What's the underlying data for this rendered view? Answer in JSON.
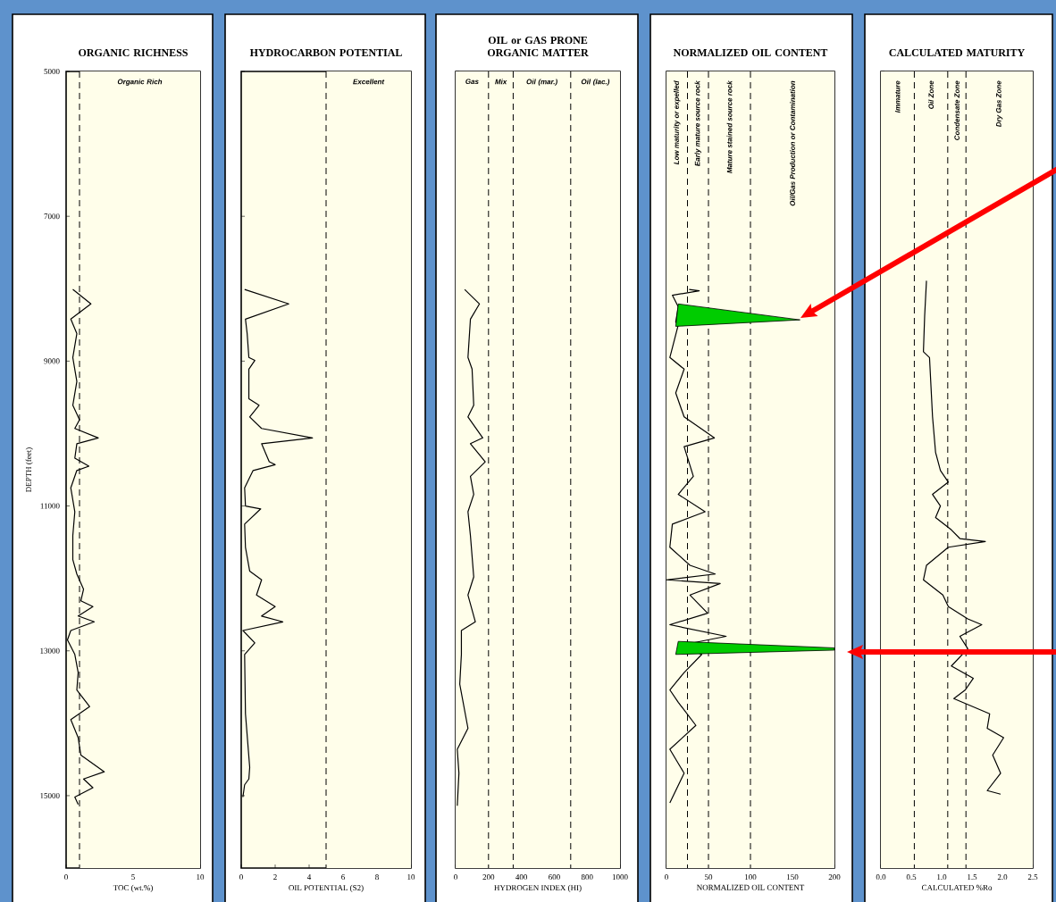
{
  "chart_data": [
    {
      "type": "line",
      "title": "ORGANIC RICHNESS",
      "xlabel": "TOC (wt.%)",
      "ylabel": "DEPTH (feet)",
      "xlim": [
        0,
        10
      ],
      "ylim": [
        16000,
        5000
      ],
      "xticks": [
        0,
        5,
        10
      ],
      "yticks": [
        5000,
        7000,
        9000,
        11000,
        13000,
        15000
      ],
      "ref_lines": [
        {
          "axis": "x",
          "value": 1,
          "line_style": "dashed"
        }
      ],
      "bands": [
        {
          "axis": "x",
          "from": 1,
          "to": 10,
          "label": "Organic Rich",
          "color": "#fffeea"
        }
      ],
      "series": [
        {
          "color": "#000000",
          "x": [
            0.5,
            1.85,
            0.35,
            0.8,
            0.5,
            0.8,
            0.5,
            1.0,
            0.65,
            2.4,
            0.8,
            0.65,
            1.7,
            0.8,
            0.35,
            0.65,
            0.5,
            0.5,
            0.8,
            1.3,
            1.1,
            2.0,
            0.9,
            2.1,
            0.35,
            0.1,
            0.65,
            0.9,
            0.8,
            1.75,
            0.35,
            0.9,
            1.1,
            2.85,
            1.3,
            2.0,
            0.65,
            0.9
          ],
          "values": [
            8010,
            8210,
            8420,
            8620,
            8950,
            9280,
            9610,
            9810,
            9930,
            10060,
            10140,
            10340,
            10450,
            10510,
            10750,
            11080,
            11410,
            11740,
            11940,
            12150,
            12310,
            12390,
            12520,
            12600,
            12720,
            12850,
            13050,
            13300,
            13540,
            13770,
            13950,
            14200,
            14440,
            14670,
            14770,
            14890,
            15020,
            15120
          ]
        }
      ]
    },
    {
      "type": "line",
      "title": "HYDROCARBON POTENTIAL",
      "xlabel": "OIL POTENTIAL (S2)",
      "xlim": [
        0,
        10
      ],
      "ylim": [
        16000,
        5000
      ],
      "xticks": [
        0,
        2,
        4,
        6,
        8,
        10
      ],
      "yticks": [
        5000,
        7000,
        9000,
        11000,
        13000,
        15000
      ],
      "tick_labels": "x",
      "ref_lines": [
        {
          "axis": "x",
          "value": 5,
          "line_style": "dashed"
        }
      ],
      "bands": [
        {
          "axis": "x",
          "from": 5,
          "to": 10,
          "label": "Excellent",
          "color": "#fffeea"
        }
      ],
      "series": [
        {
          "color": "#000000",
          "x": [
            0.2,
            2.8,
            0.25,
            0.35,
            0.45,
            0.8,
            0.45,
            0.45,
            1.05,
            0.5,
            1.2,
            4.2,
            1.2,
            1.65,
            2.0,
            0.7,
            0.2,
            0.25,
            1.15,
            0.2,
            0.25,
            0.5,
            1.2,
            0.9,
            2.0,
            1.2,
            2.45,
            0.1,
            0.8,
            0.2,
            0.25,
            0.5,
            0.45,
            0.2,
            0.1
          ],
          "values": [
            8010,
            8210,
            8420,
            8620,
            8950,
            8990,
            9110,
            9520,
            9610,
            9770,
            9930,
            10060,
            10140,
            10390,
            10430,
            10510,
            10750,
            11000,
            11040,
            11250,
            11570,
            11900,
            12020,
            12230,
            12390,
            12520,
            12600,
            12720,
            12890,
            13050,
            13870,
            14610,
            14770,
            14850,
            15020
          ]
        }
      ]
    },
    {
      "type": "line",
      "title": "OIL or GAS PRONE ORGANIC MATTER",
      "xlabel": "HYDROGEN INDEX (HI)",
      "xlim": [
        0,
        1000
      ],
      "ylim": [
        16000,
        5000
      ],
      "xticks": [
        0,
        200,
        400,
        600,
        800,
        1000
      ],
      "yticks": [
        5000,
        7000,
        9000,
        11000,
        13000,
        15000
      ],
      "tick_labels": "x",
      "ref_lines": [
        {
          "axis": "x",
          "value": 200,
          "line_style": "dashed"
        },
        {
          "axis": "x",
          "value": 350,
          "line_style": "dashed"
        },
        {
          "axis": "x",
          "value": 700,
          "line_style": "dashed"
        }
      ],
      "bands": [
        {
          "axis": "x",
          "from": 0,
          "to": 200,
          "label": "Gas",
          "color": "#fffeea"
        },
        {
          "axis": "x",
          "from": 200,
          "to": 350,
          "label": "Mix",
          "color": "#fffeea"
        },
        {
          "axis": "x",
          "from": 350,
          "to": 700,
          "label": "Oil (mar.)",
          "color": "#fffeea"
        },
        {
          "axis": "x",
          "from": 700,
          "to": 1000,
          "label": "Oil (lac.)",
          "color": "#fffeea"
        }
      ],
      "series": [
        {
          "color": "#000000",
          "x": [
            55,
            145,
            90,
            75,
            100,
            110,
            75,
            165,
            90,
            180,
            90,
            110,
            75,
            90,
            110,
            75,
            120,
            35,
            35,
            25,
            75,
            10,
            20,
            10
          ],
          "values": [
            8010,
            8210,
            8420,
            8950,
            9110,
            9610,
            9770,
            10060,
            10140,
            10390,
            10590,
            10840,
            11080,
            11410,
            11980,
            12230,
            12600,
            12720,
            13050,
            13460,
            14070,
            14360,
            14690,
            15140
          ]
        }
      ]
    },
    {
      "type": "line",
      "title": "NORMALIZED OIL CONTENT",
      "xlabel": "NORMALIZED OIL CONTENT",
      "xlim": [
        0,
        200
      ],
      "ylim": [
        16000,
        5000
      ],
      "xticks": [
        0,
        50,
        100,
        150,
        200
      ],
      "yticks": [
        5000,
        7000,
        9000,
        11000,
        13000,
        15000
      ],
      "tick_labels": "x",
      "ref_lines": [
        {
          "axis": "x",
          "value": 25,
          "line_style": "dashed"
        },
        {
          "axis": "x",
          "value": 50,
          "line_style": "dashed"
        },
        {
          "axis": "x",
          "value": 100,
          "line_style": "dashed"
        }
      ],
      "bands": [
        {
          "axis": "x",
          "from": 0,
          "to": 25,
          "label": "Low maturity or expelled",
          "color": "#fffeea"
        },
        {
          "axis": "x",
          "from": 25,
          "to": 50,
          "label": "Early mature source rock",
          "color": "#fffeea"
        },
        {
          "axis": "x",
          "from": 50,
          "to": 100,
          "label": "Mature stained source rock",
          "color": "#fffeea"
        },
        {
          "axis": "x",
          "from": 100,
          "to": 200,
          "label": "Oil/Gas Production or Contamination",
          "color": "#fffeea"
        }
      ],
      "series": [
        {
          "color": "#000000",
          "x": [
            27,
            39,
            7,
            14,
            11,
            14,
            4,
            21,
            11,
            21,
            57,
            21,
            32,
            14,
            46,
            7,
            4,
            28,
            58,
            0,
            64,
            28,
            49,
            4,
            71,
            14,
            42,
            21,
            4,
            14,
            35,
            4,
            21,
            4
          ],
          "values": [
            8010,
            8030,
            8090,
            8250,
            8460,
            8500,
            8950,
            9110,
            9440,
            9770,
            10060,
            10180,
            10590,
            10840,
            11080,
            11250,
            11570,
            11820,
            11940,
            12020,
            12070,
            12230,
            12480,
            12640,
            12800,
            12930,
            13050,
            13300,
            13540,
            13710,
            14030,
            14360,
            14690,
            15100
          ]
        },
        {
          "type": "area",
          "color": "#00cc00",
          "x": [
            14,
            159,
            11
          ],
          "values": [
            8210,
            8430,
            8520
          ]
        },
        {
          "type": "area",
          "color": "#00cc00",
          "x": [
            14,
            200,
            200,
            11
          ],
          "values": [
            12870,
            12960,
            12990,
            13050
          ]
        }
      ]
    },
    {
      "type": "line",
      "title": "CALCULATED MATURITY",
      "xlabel": "CALCULATED %Ro",
      "xlim": [
        0,
        2.5
      ],
      "ylim": [
        16000,
        5000
      ],
      "xticks": [
        {
          "value": 0,
          "label": "0.0"
        },
        0.5,
        {
          "value": 1,
          "label": "1.0"
        },
        1.5,
        {
          "value": 2,
          "label": "2.0"
        },
        2.5
      ],
      "yticks": [
        5000,
        7000,
        9000,
        11000,
        13000,
        15000
      ],
      "tick_labels": "x",
      "ref_lines": [
        {
          "axis": "x",
          "value": 0.55,
          "line_style": "dashed"
        },
        {
          "axis": "x",
          "value": 1.1,
          "line_style": "dashed"
        },
        {
          "axis": "x",
          "value": 1.4,
          "line_style": "dashed"
        }
      ],
      "bands": [
        {
          "axis": "x",
          "from": 0,
          "to": 0.55,
          "label": "Immature",
          "color": "#fffeea"
        },
        {
          "axis": "x",
          "from": 0.55,
          "to": 1.1,
          "label": "Oil Zone",
          "color": "#fffeea"
        },
        {
          "axis": "x",
          "from": 1.1,
          "to": 1.4,
          "label": "Condensate Zone",
          "color": "#fffeea"
        },
        {
          "axis": "x",
          "from": 1.4,
          "to": 2.5,
          "label": "Dry Gas Zone",
          "color": "#fffeea"
        }
      ],
      "series": [
        {
          "color": "#000000",
          "x": [
            0.75,
            0.72,
            0.7,
            0.8,
            0.82,
            0.85,
            0.9,
            0.98,
            1.11,
            0.85,
            0.98,
            0.9,
            1.16,
            1.3,
            1.72,
            1.11,
            0.75,
            0.7,
            1.02,
            1.11,
            1.43,
            1.66,
            1.3,
            1.43,
            1.16,
            1.52,
            1.39,
            1.2,
            1.79,
            1.75,
            2.02,
            1.84,
            1.97,
            1.75,
            1.97
          ],
          "values": [
            7890,
            8380,
            8870,
            8950,
            9280,
            9770,
            10260,
            10510,
            10670,
            10840,
            11000,
            11160,
            11330,
            11450,
            11490,
            11570,
            11820,
            12020,
            12230,
            12390,
            12560,
            12640,
            12800,
            12970,
            13210,
            13380,
            13540,
            13660,
            13870,
            14070,
            14200,
            14440,
            14690,
            14930,
            14980
          ]
        }
      ]
    }
  ]
}
